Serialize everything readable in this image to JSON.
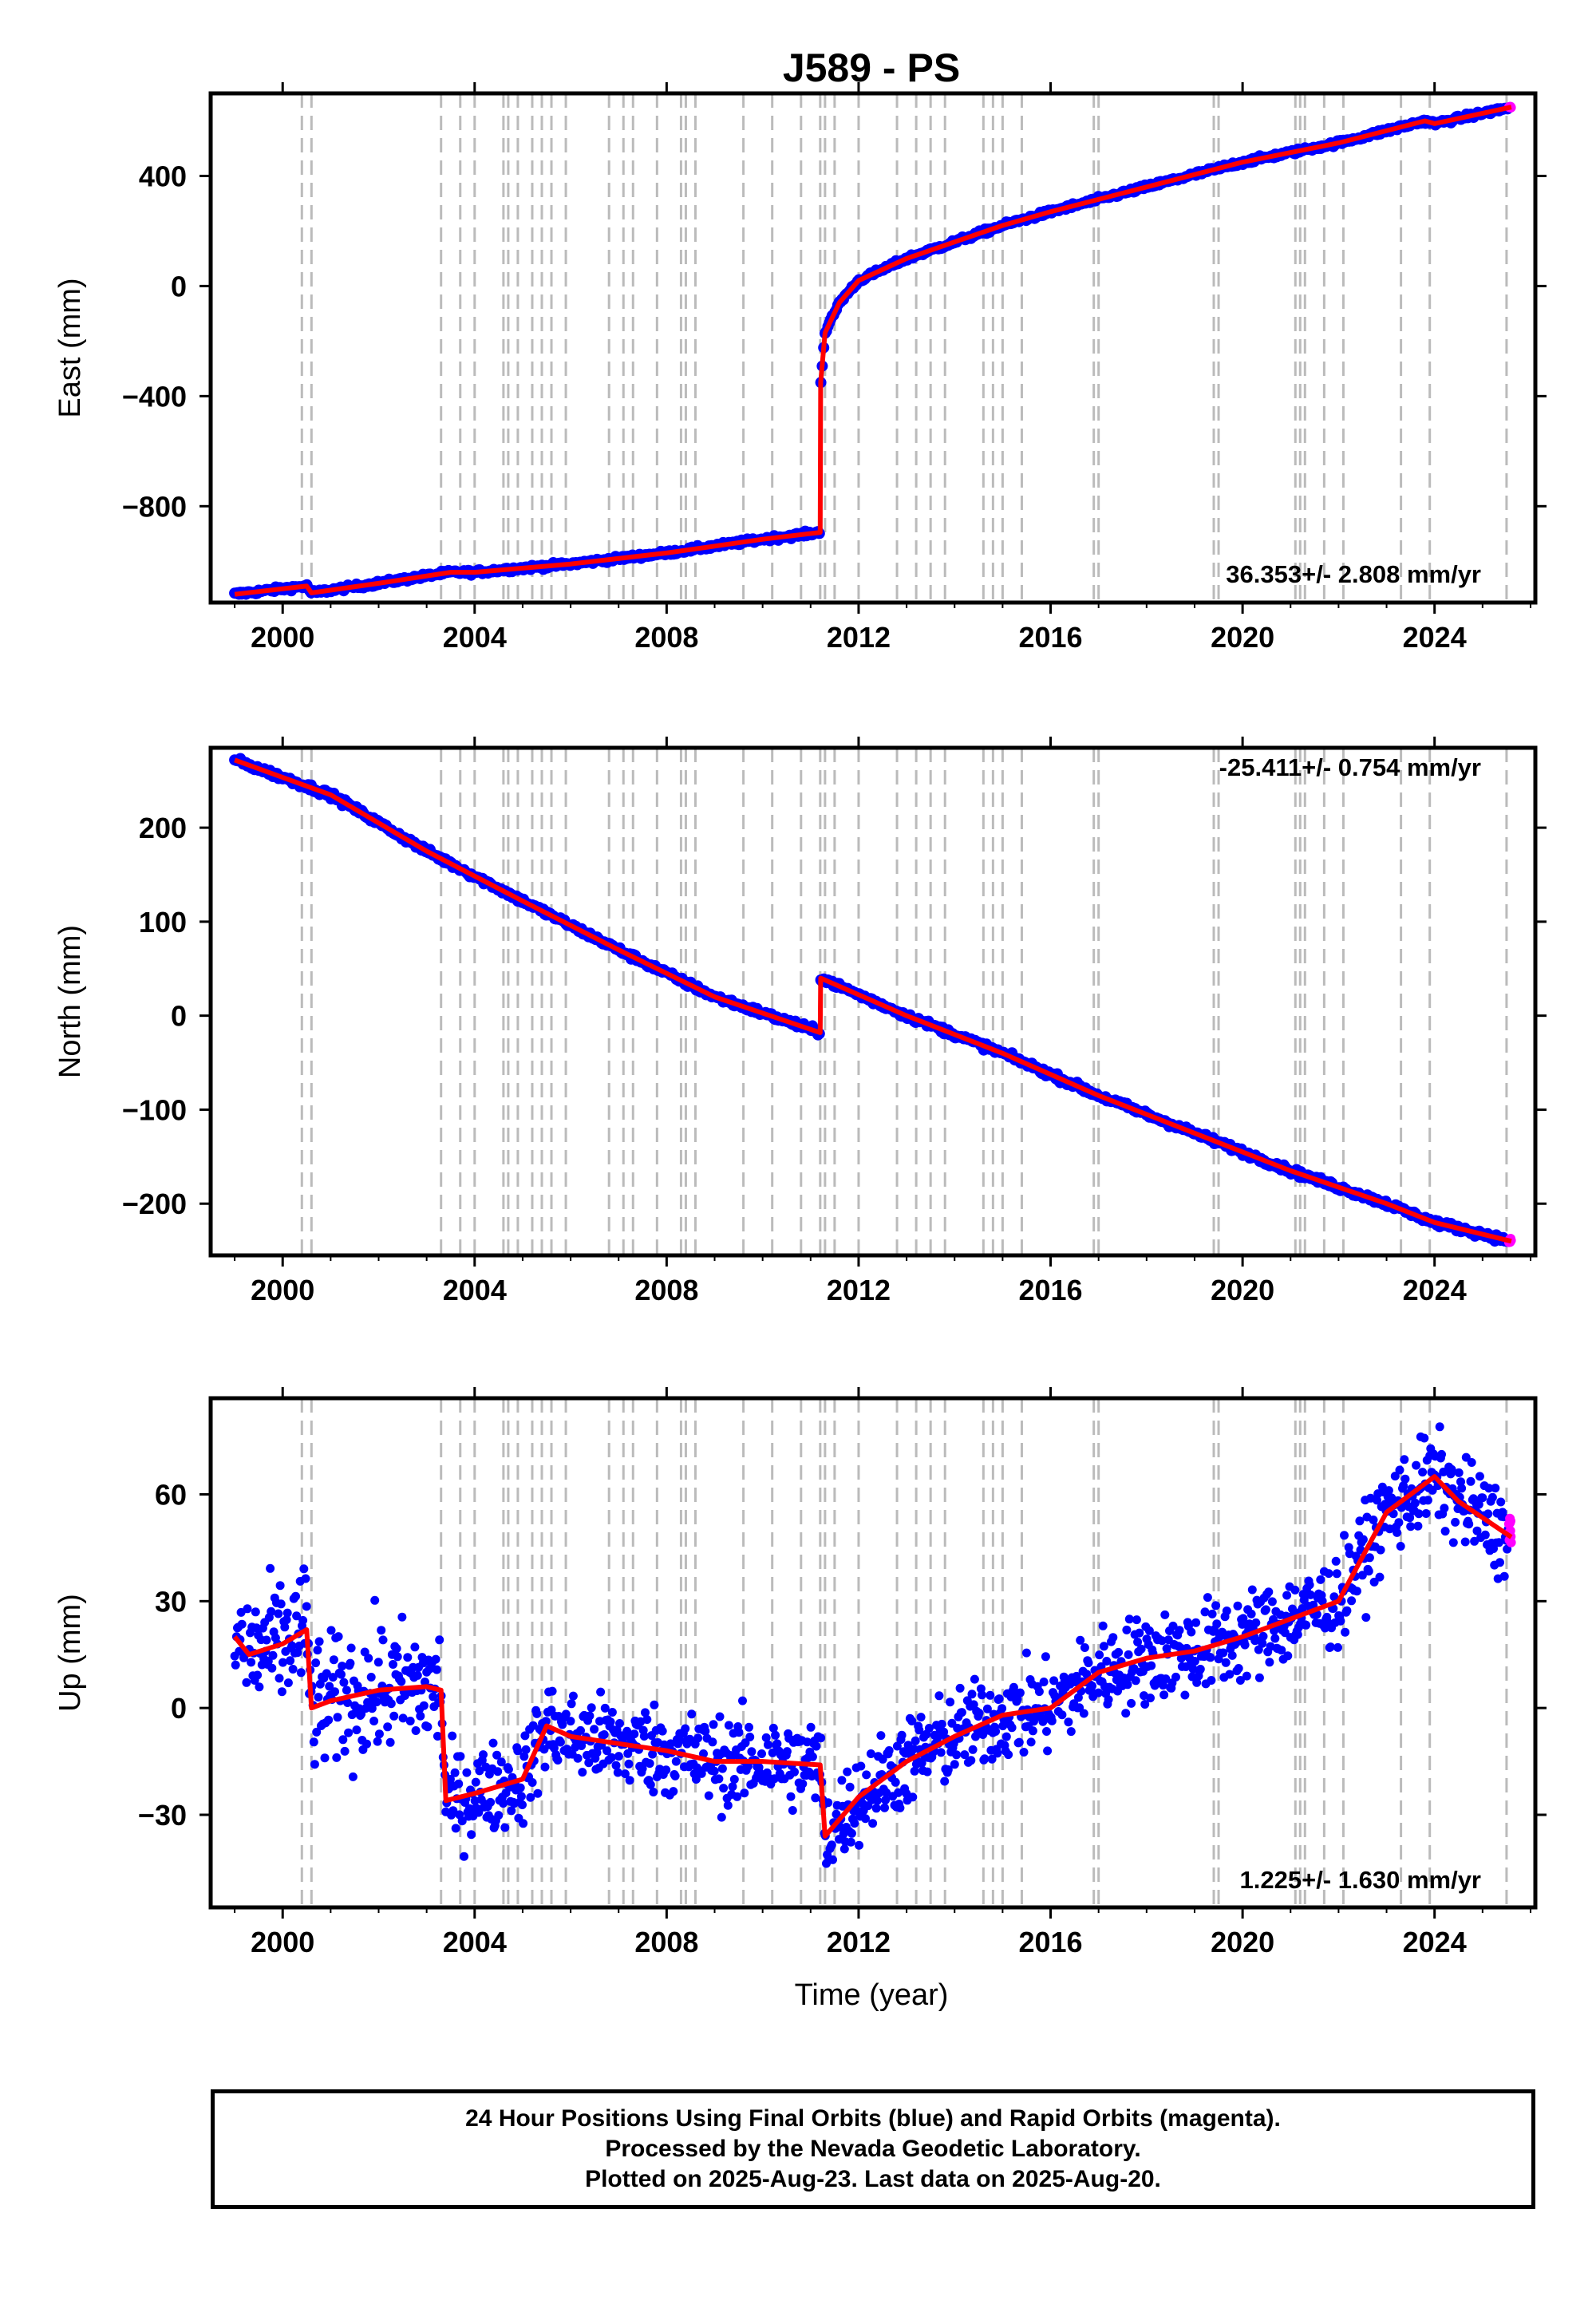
{
  "title": "J589 - PS",
  "xlabel": "Time (year)",
  "footer": {
    "line1": "24 Hour Positions Using Final Orbits (blue) and Rapid Orbits (magenta).",
    "line2": "Processed by the Nevada Geodetic Laboratory.",
    "line3": "Plotted on 2025-Aug-23. Last data on 2025-Aug-20."
  },
  "colors": {
    "final_points": "#0000ff",
    "rapid_points": "#ff00ff",
    "model_line": "#ff0000",
    "event_lines": "#bbbbbb",
    "frame": "#000000"
  },
  "chart_data": [
    {
      "type": "scatter",
      "panel": "east",
      "ylabel": "East (mm)",
      "rate_label": "36.353+/- 2.808 mm/yr",
      "xlim": [
        1998.5,
        2026.1
      ],
      "ylim": [
        -1150,
        700
      ],
      "xticks": [
        "2000",
        "2004",
        "2008",
        "2012",
        "2016",
        "2020",
        "2024"
      ],
      "yticks": [
        "400",
        "0",
        "-400",
        "-800"
      ],
      "ytick_values": [
        400,
        0,
        -400,
        -800
      ],
      "series": [
        {
          "x": [
            1999.0,
            2000.5,
            2000.6,
            2002.0,
            2003.5,
            2004.0,
            2006.0,
            2008.0,
            2010.0,
            2011.2,
            2011.21,
            2011.3,
            2011.6,
            2012.0,
            2013.0,
            2014.0,
            2015.0,
            2016.0,
            2018.0,
            2020.0,
            2022.0,
            2023.8,
            2024.0,
            2025.6
          ],
          "y": [
            -1120,
            -1090,
            -1115,
            -1080,
            -1040,
            -1040,
            -1010,
            -970,
            -920,
            -895,
            -350,
            -170,
            -60,
            20,
            100,
            160,
            220,
            270,
            360,
            450,
            520,
            600,
            590,
            650
          ]
        }
      ],
      "events": [
        2000.4,
        2000.6,
        2003.3,
        2003.7,
        2004.0,
        2004.6,
        2004.7,
        2004.9,
        2005.2,
        2005.4,
        2005.6,
        2005.9,
        2006.8,
        2007.1,
        2007.3,
        2007.8,
        2008.3,
        2008.4,
        2008.6,
        2009.6,
        2010.2,
        2010.8,
        2011.2,
        2011.3,
        2011.5,
        2012.0,
        2012.8,
        2013.2,
        2013.5,
        2013.8,
        2014.6,
        2014.8,
        2015.0,
        2015.4,
        2016.9,
        2017.0,
        2019.4,
        2019.5,
        2021.1,
        2021.2,
        2021.3,
        2021.7,
        2022.1,
        2023.3,
        2023.9,
        2025.5
      ]
    },
    {
      "type": "scatter",
      "panel": "north",
      "ylabel": "North (mm)",
      "rate_label": "-25.411+/- 0.754 mm/yr",
      "xlim": [
        1998.5,
        2026.1
      ],
      "ylim": [
        -255,
        285
      ],
      "xticks": [
        "2000",
        "2004",
        "2008",
        "2012",
        "2016",
        "2020",
        "2024"
      ],
      "yticks": [
        "200",
        "100",
        "0",
        "-100",
        "-200"
      ],
      "ytick_values": [
        200,
        100,
        0,
        -100,
        -200
      ],
      "series": [
        {
          "x": [
            1999.0,
            2001.0,
            2003.0,
            2005.0,
            2007.0,
            2009.0,
            2011.2,
            2011.21,
            2013.0,
            2015.0,
            2017.0,
            2019.0,
            2021.0,
            2023.0,
            2024.0,
            2025.6
          ],
          "y": [
            272,
            235,
            175,
            122,
            70,
            20,
            -18,
            40,
            0,
            -40,
            -85,
            -125,
            -165,
            -200,
            -220,
            -240
          ]
        }
      ],
      "events": [
        2000.4,
        2000.6,
        2003.3,
        2003.7,
        2004.0,
        2004.6,
        2004.7,
        2004.9,
        2005.2,
        2005.4,
        2005.6,
        2005.9,
        2006.8,
        2007.1,
        2007.3,
        2007.8,
        2008.3,
        2008.4,
        2008.6,
        2009.6,
        2010.2,
        2010.8,
        2011.2,
        2011.3,
        2011.5,
        2012.0,
        2012.8,
        2013.2,
        2013.5,
        2013.8,
        2014.6,
        2014.8,
        2015.0,
        2015.4,
        2016.9,
        2017.0,
        2019.4,
        2019.5,
        2021.1,
        2021.2,
        2021.3,
        2021.7,
        2022.1,
        2023.3,
        2023.9,
        2025.5
      ]
    },
    {
      "type": "scatter",
      "panel": "up",
      "ylabel": "Up (mm)",
      "rate_label": "1.225+/- 1.630 mm/yr",
      "xlim": [
        1998.5,
        2026.1
      ],
      "ylim": [
        -56,
        87
      ],
      "xticks": [
        "2000",
        "2004",
        "2008",
        "2012",
        "2016",
        "2020",
        "2024"
      ],
      "yticks": [
        "60",
        "30",
        "0",
        "-30"
      ],
      "ytick_values": [
        60,
        30,
        0,
        -30
      ],
      "series": [
        {
          "x": [
            1999.0,
            1999.3,
            2000.0,
            2000.5,
            2000.6,
            2001.0,
            2002.0,
            2003.0,
            2003.3,
            2003.4,
            2004.0,
            2005.0,
            2005.5,
            2006.0,
            2007.0,
            2008.0,
            2009.0,
            2010.0,
            2011.2,
            2011.3,
            2012.0,
            2013.0,
            2014.0,
            2015.0,
            2016.0,
            2017.0,
            2018.0,
            2019.0,
            2020.0,
            2021.0,
            2022.0,
            2023.0,
            2024.0,
            2024.5,
            2025.6
          ],
          "y": [
            20,
            15,
            18,
            22,
            0,
            2,
            5,
            6,
            5,
            -26,
            -24,
            -20,
            -5,
            -8,
            -10,
            -12,
            -15,
            -15,
            -16,
            -36,
            -25,
            -15,
            -8,
            -2,
            0,
            10,
            14,
            16,
            20,
            25,
            30,
            55,
            65,
            58,
            48
          ]
        }
      ],
      "events": [
        2000.4,
        2000.6,
        2003.3,
        2003.7,
        2004.0,
        2004.6,
        2004.7,
        2004.9,
        2005.2,
        2005.4,
        2005.6,
        2005.9,
        2006.8,
        2007.1,
        2007.3,
        2007.8,
        2008.3,
        2008.4,
        2008.6,
        2009.6,
        2010.2,
        2010.8,
        2011.2,
        2011.3,
        2011.5,
        2012.0,
        2012.8,
        2013.2,
        2013.5,
        2013.8,
        2014.6,
        2014.8,
        2015.0,
        2015.4,
        2016.9,
        2017.0,
        2019.4,
        2019.5,
        2021.1,
        2021.2,
        2021.3,
        2021.7,
        2022.1,
        2023.3,
        2023.9,
        2025.5
      ]
    }
  ]
}
